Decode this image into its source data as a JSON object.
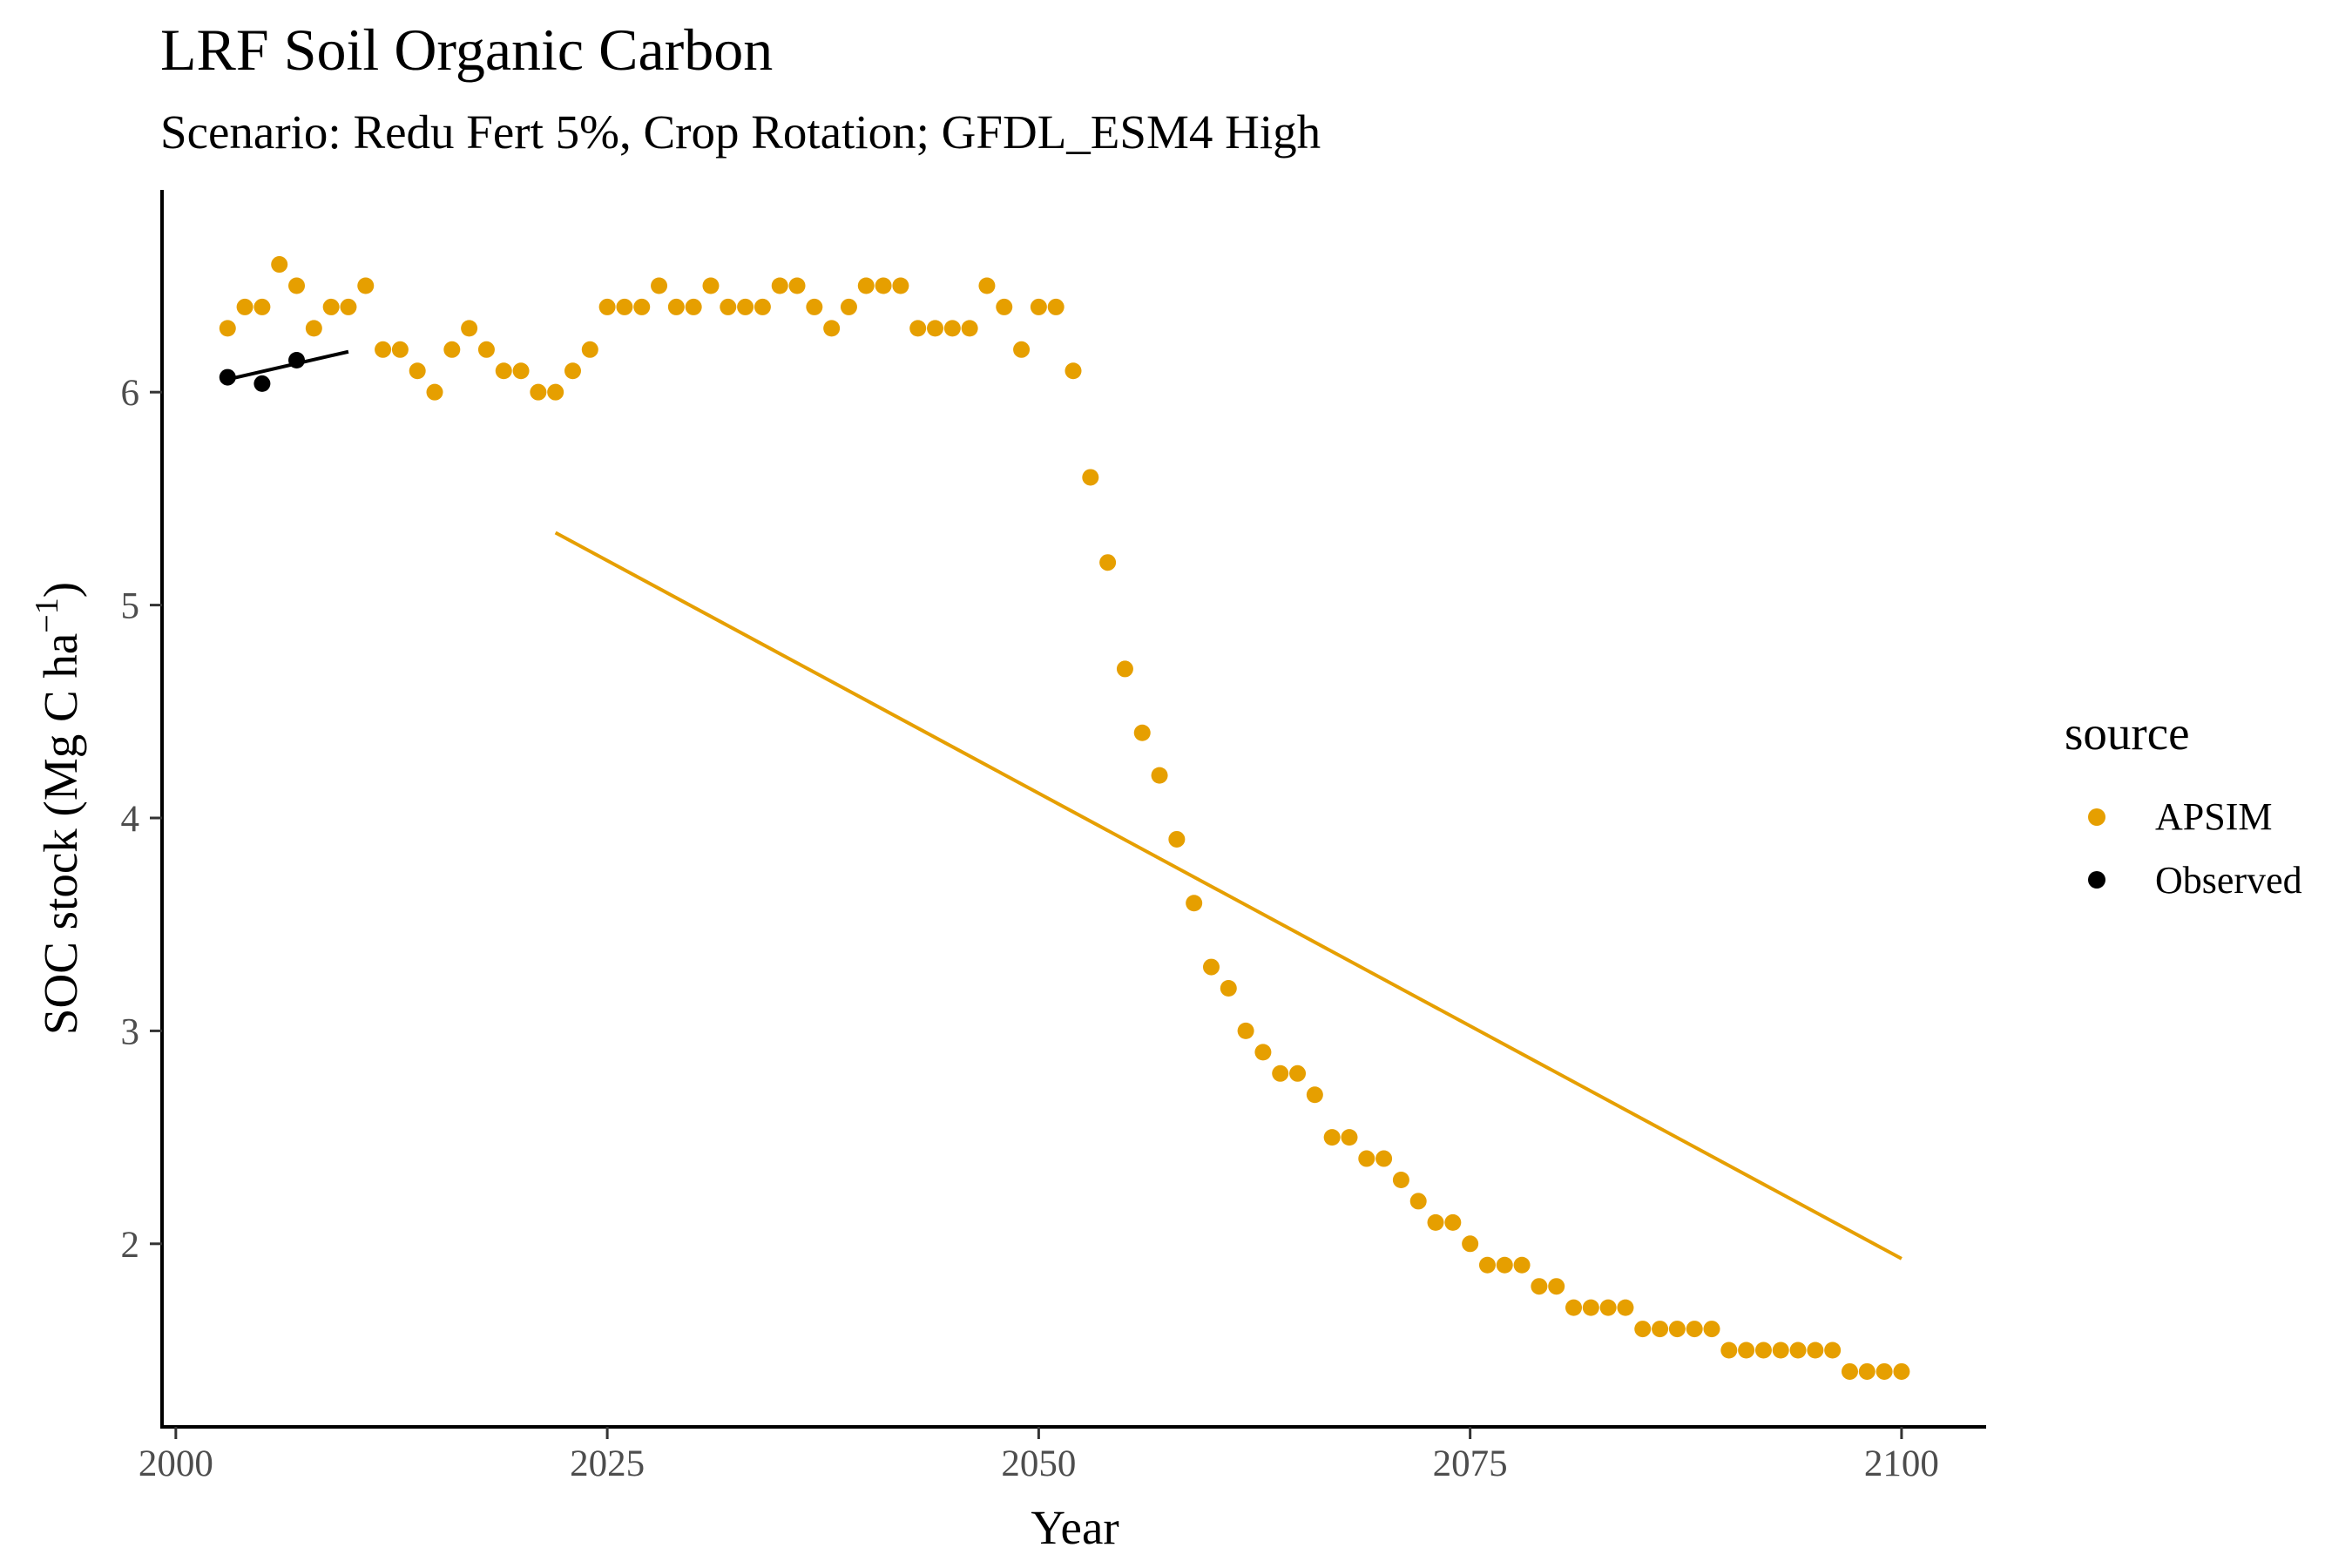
{
  "chart_data": {
    "type": "scatter",
    "title": "LRF Soil Organic Carbon",
    "subtitle": "Scenario: Redu Fert 5%, Crop Rotation; GFDL_ESM4 High",
    "xlabel": "Year",
    "ylabel_main": "SOC stock (Mg C ha",
    "ylabel_sup": "−1",
    "ylabel_close": ")",
    "xlim": [
      1999.2,
      2104.8
    ],
    "ylim": [
      1.14,
      6.95
    ],
    "x_ticks": [
      2000,
      2025,
      2050,
      2075,
      2100
    ],
    "y_ticks": [
      2,
      3,
      4,
      5,
      6
    ],
    "grid": false,
    "legend": {
      "title": "source",
      "position": "right",
      "entries": [
        {
          "label": "APSIM",
          "color": "#E69F00"
        },
        {
          "label": "Observed",
          "color": "#000000"
        }
      ]
    },
    "series": [
      {
        "name": "APSIM",
        "color": "#E69F00",
        "x": [
          2003,
          2004,
          2005,
          2006,
          2007,
          2008,
          2009,
          2010,
          2011,
          2012,
          2013,
          2014,
          2015,
          2016,
          2017,
          2018,
          2019,
          2020,
          2021,
          2022,
          2023,
          2024,
          2025,
          2026,
          2027,
          2028,
          2029,
          2030,
          2031,
          2032,
          2033,
          2034,
          2035,
          2036,
          2037,
          2038,
          2039,
          2040,
          2041,
          2042,
          2043,
          2044,
          2045,
          2046,
          2047,
          2048,
          2049,
          2050,
          2051,
          2052,
          2053,
          2054,
          2055,
          2056,
          2057,
          2058,
          2059,
          2060,
          2061,
          2062,
          2063,
          2064,
          2065,
          2066,
          2067,
          2068,
          2069,
          2070,
          2071,
          2072,
          2073,
          2074,
          2075,
          2076,
          2077,
          2078,
          2079,
          2080,
          2081,
          2082,
          2083,
          2084,
          2085,
          2086,
          2087,
          2088,
          2089,
          2090,
          2091,
          2092,
          2093,
          2094,
          2095,
          2096,
          2097,
          2098,
          2099,
          2100
        ],
        "y": [
          6.3,
          6.4,
          6.4,
          6.6,
          6.5,
          6.3,
          6.4,
          6.4,
          6.5,
          6.2,
          6.2,
          6.1,
          6.0,
          6.2,
          6.3,
          6.2,
          6.1,
          6.1,
          6.0,
          6.0,
          6.1,
          6.2,
          6.4,
          6.4,
          6.4,
          6.5,
          6.4,
          6.4,
          6.5,
          6.4,
          6.4,
          6.4,
          6.5,
          6.5,
          6.4,
          6.3,
          6.4,
          6.5,
          6.5,
          6.5,
          6.3,
          6.3,
          6.3,
          6.3,
          6.5,
          6.4,
          6.2,
          6.4,
          6.4,
          6.1,
          5.6,
          5.2,
          4.7,
          4.4,
          4.2,
          3.9,
          3.6,
          3.3,
          3.2,
          3.0,
          2.9,
          2.8,
          2.8,
          2.7,
          2.5,
          2.5,
          2.4,
          2.4,
          2.3,
          2.2,
          2.1,
          2.1,
          2.0,
          1.9,
          1.9,
          1.9,
          1.8,
          1.8,
          1.7,
          1.7,
          1.7,
          1.7,
          1.6,
          1.6,
          1.6,
          1.6,
          1.6,
          1.5,
          1.5,
          1.5,
          1.5,
          1.5,
          1.5,
          1.5,
          1.4,
          1.4,
          1.4,
          1.4
        ],
        "trend": {
          "x": [
            2022,
            2100
          ],
          "y": [
            5.34,
            1.93
          ]
        }
      },
      {
        "name": "Observed",
        "color": "#000000",
        "x": [
          2003,
          2005,
          2007
        ],
        "y": [
          6.07,
          6.04,
          6.15
        ],
        "trend": {
          "x": [
            2003,
            2010
          ],
          "y": [
            6.06,
            6.19
          ]
        }
      }
    ]
  }
}
